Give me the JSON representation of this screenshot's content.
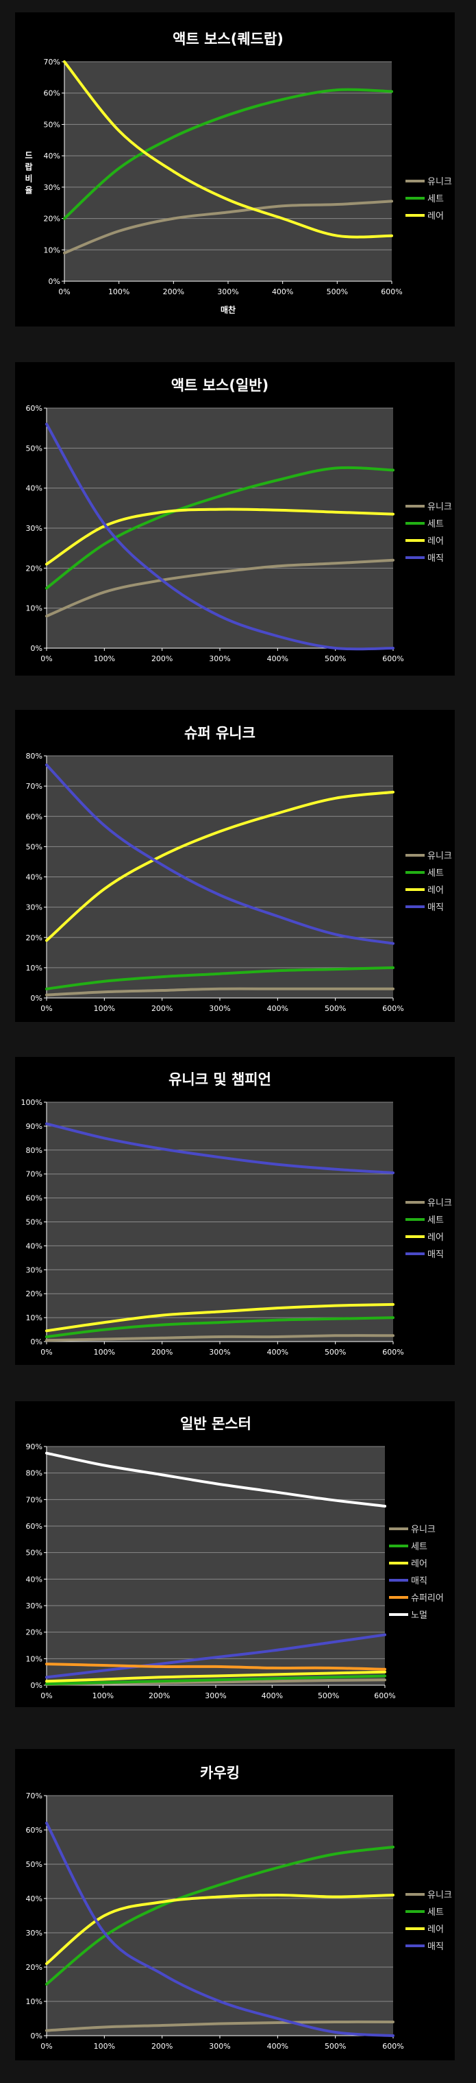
{
  "chart_data": [
    {
      "type": "line",
      "title": "액트 보스(퀘드랍)",
      "xlabel": "매찬",
      "ylabel": "드랍비율",
      "x": [
        "0%",
        "100%",
        "200%",
        "300%",
        "400%",
        "500%",
        "600%"
      ],
      "ylim": [
        0,
        70
      ],
      "yticks": [
        "0%",
        "10%",
        "20%",
        "30%",
        "40%",
        "50%",
        "60%",
        "70%"
      ],
      "grid": true,
      "legend": "right",
      "series": [
        {
          "name": "유니크",
          "color": "#9c9272",
          "values": [
            9,
            16,
            20,
            22,
            24,
            24.5,
            25.5
          ]
        },
        {
          "name": "세트",
          "color": "#22b014",
          "values": [
            20,
            36,
            46,
            53,
            58,
            61,
            60.5
          ]
        },
        {
          "name": "레어",
          "color": "#ffff2b",
          "values": [
            70,
            48,
            35,
            26,
            20,
            14.5,
            14.5
          ]
        }
      ]
    },
    {
      "type": "line",
      "title": "액트 보스(일반)",
      "x": [
        "0%",
        "100%",
        "200%",
        "300%",
        "400%",
        "500%",
        "600%"
      ],
      "ylim": [
        0,
        60
      ],
      "yticks": [
        "0%",
        "10%",
        "20%",
        "30%",
        "40%",
        "50%",
        "60%"
      ],
      "grid": true,
      "legend": "right",
      "series": [
        {
          "name": "유니크",
          "color": "#9c9272",
          "values": [
            8,
            14,
            17,
            19,
            20.5,
            21.2,
            22
          ]
        },
        {
          "name": "세트",
          "color": "#22b014",
          "values": [
            15,
            26,
            33,
            38,
            42,
            45,
            44.5
          ]
        },
        {
          "name": "레어",
          "color": "#ffff2b",
          "values": [
            21,
            30.5,
            34,
            34.7,
            34.5,
            34,
            33.5
          ]
        },
        {
          "name": "매직",
          "color": "#4a4ac8",
          "values": [
            56,
            31,
            17,
            8,
            3,
            0,
            0
          ]
        }
      ]
    },
    {
      "type": "line",
      "title": "슈퍼 유니크",
      "x": [
        "0%",
        "100%",
        "200%",
        "300%",
        "400%",
        "500%",
        "600%"
      ],
      "ylim": [
        0,
        80
      ],
      "yticks": [
        "0%",
        "10%",
        "20%",
        "30%",
        "40%",
        "50%",
        "60%",
        "70%",
        "80%"
      ],
      "grid": true,
      "legend": "right",
      "series": [
        {
          "name": "유니크",
          "color": "#9c9272",
          "values": [
            1,
            2,
            2.5,
            3,
            3,
            3,
            3
          ]
        },
        {
          "name": "세트",
          "color": "#22b014",
          "values": [
            3,
            5.5,
            7,
            8,
            9,
            9.5,
            10
          ]
        },
        {
          "name": "레어",
          "color": "#ffff2b",
          "values": [
            19,
            36,
            47,
            55,
            61,
            66,
            68
          ]
        },
        {
          "name": "매직",
          "color": "#4a4ac8",
          "values": [
            77,
            57,
            44,
            34,
            27,
            21,
            18
          ]
        }
      ]
    },
    {
      "type": "line",
      "title": "유니크 및 챔피언",
      "x": [
        "0%",
        "100%",
        "200%",
        "300%",
        "400%",
        "500%",
        "600%"
      ],
      "ylim": [
        0,
        100
      ],
      "yticks": [
        "0%",
        "10%",
        "20%",
        "30%",
        "40%",
        "50%",
        "60%",
        "70%",
        "80%",
        "90%",
        "100%"
      ],
      "grid": true,
      "legend": "right",
      "series": [
        {
          "name": "유니크",
          "color": "#9c9272",
          "values": [
            0.5,
            1,
            1.5,
            2,
            2,
            2.5,
            2.5
          ]
        },
        {
          "name": "세트",
          "color": "#22b014",
          "values": [
            2,
            5,
            7,
            8,
            9,
            9.5,
            10
          ]
        },
        {
          "name": "레어",
          "color": "#ffff2b",
          "values": [
            4.5,
            8,
            11,
            12.5,
            14,
            15,
            15.5
          ]
        },
        {
          "name": "매직",
          "color": "#4a4ac8",
          "values": [
            91,
            85,
            80.5,
            77,
            74,
            72,
            70.5
          ]
        }
      ]
    },
    {
      "type": "line",
      "title": "일반 몬스터",
      "x": [
        "0%",
        "100%",
        "200%",
        "300%",
        "400%",
        "500%",
        "600%"
      ],
      "ylim": [
        0,
        90
      ],
      "yticks": [
        "0%",
        "10%",
        "20%",
        "30%",
        "40%",
        "50%",
        "60%",
        "70%",
        "80%",
        "90%"
      ],
      "grid": true,
      "legend": "right",
      "series": [
        {
          "name": "유니크",
          "color": "#9c9272",
          "values": [
            0.3,
            0.6,
            0.9,
            1.2,
            1.5,
            1.8,
            2
          ]
        },
        {
          "name": "세트",
          "color": "#22b014",
          "values": [
            0.5,
            1,
            1.5,
            2,
            2.5,
            3,
            3.5
          ]
        },
        {
          "name": "레어",
          "color": "#ffff2b",
          "values": [
            1.5,
            2.2,
            3,
            3.5,
            4,
            4.5,
            5
          ]
        },
        {
          "name": "매직",
          "color": "#4a4ac8",
          "values": [
            3,
            5.5,
            8,
            10.5,
            13,
            16,
            19
          ]
        },
        {
          "name": "슈퍼리어",
          "color": "#ff9a22",
          "values": [
            8,
            7.5,
            7,
            7,
            6.5,
            6.5,
            6
          ]
        },
        {
          "name": "노멀",
          "color": "#ffffff",
          "values": [
            87.5,
            83,
            79.5,
            76,
            73,
            70,
            67.5
          ]
        }
      ]
    },
    {
      "type": "line",
      "title": "카우킹",
      "x": [
        "0%",
        "100%",
        "200%",
        "300%",
        "400%",
        "500%",
        "600%"
      ],
      "ylim": [
        0,
        70
      ],
      "yticks": [
        "0%",
        "10%",
        "20%",
        "30%",
        "40%",
        "50%",
        "60%",
        "70%"
      ],
      "grid": true,
      "legend": "right",
      "series": [
        {
          "name": "유니크",
          "color": "#9c9272",
          "values": [
            1.5,
            2.5,
            3,
            3.5,
            3.8,
            4,
            4
          ]
        },
        {
          "name": "세트",
          "color": "#22b014",
          "values": [
            15,
            29,
            38,
            44,
            49,
            53,
            55
          ]
        },
        {
          "name": "레어",
          "color": "#ffff2b",
          "values": [
            21,
            35,
            39,
            40.5,
            41,
            40.5,
            41
          ]
        },
        {
          "name": "매직",
          "color": "#4a4ac8",
          "values": [
            62,
            30,
            18,
            10,
            5,
            1,
            0
          ]
        }
      ]
    }
  ]
}
